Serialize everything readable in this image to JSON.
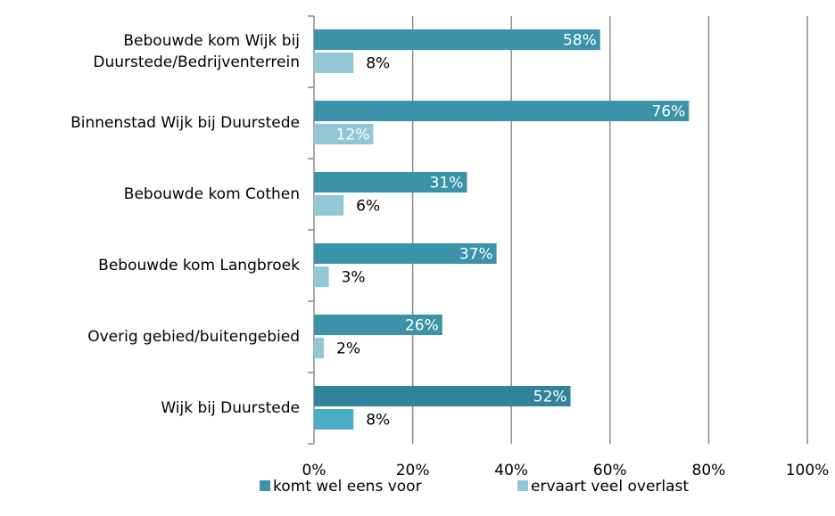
{
  "chart_data": {
    "type": "hbar",
    "categories": [
      "Bebouwde kom Wijk bij Duurstede/Bedrijventerrein",
      "Binnenstad Wijk bij Duurstede",
      "Bebouwde kom Cothen",
      "Bebouwde kom Langbroek",
      "Overig gebied/buitengebied",
      "Wijk bij Duurstede"
    ],
    "series": [
      {
        "name": "komt wel eens voor",
        "color": "#3a93a8",
        "colors": [
          "#3a93a8",
          "#3a93a8",
          "#3a93a8",
          "#3a93a8",
          "#3a93a8",
          "#31849b"
        ],
        "values": [
          58,
          76,
          31,
          37,
          26,
          52
        ],
        "value_labels": [
          "58%",
          "76%",
          "31%",
          "37%",
          "26%",
          "52%"
        ]
      },
      {
        "name": "ervaart veel overlast",
        "color": "#93c7d6",
        "colors": [
          "#93c7d6",
          "#93c7d6",
          "#93c7d6",
          "#93c7d6",
          "#93c7d6",
          "#4bacc6"
        ],
        "values": [
          8,
          12,
          6,
          3,
          2,
          8
        ],
        "value_labels": [
          "8%",
          "12%",
          "6%",
          "3%",
          "2%",
          "8%"
        ]
      }
    ],
    "xlim": [
      0,
      100
    ],
    "xticks": [
      {
        "value": 0,
        "label": "0%"
      },
      {
        "value": 20,
        "label": "20%"
      },
      {
        "value": 40,
        "label": "40%"
      },
      {
        "value": 60,
        "label": "60%"
      },
      {
        "value": 80,
        "label": "80%"
      },
      {
        "value": 100,
        "label": "100%"
      }
    ],
    "grid": true,
    "legend": "bottom"
  }
}
